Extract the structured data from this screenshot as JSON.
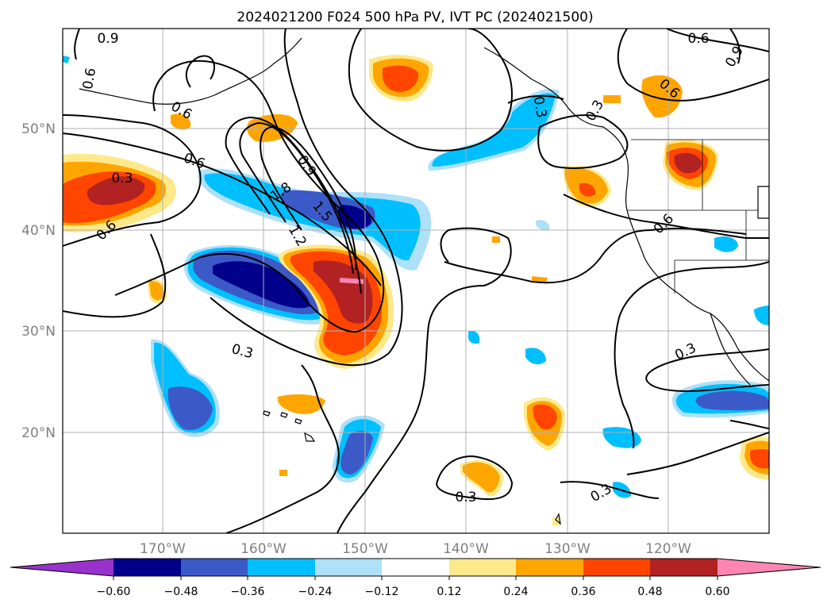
{
  "title": "2024021200 F024 500 hPa PV, IVT PC (2024021500)",
  "lat_labels": [
    "50°N",
    "40°N",
    "30°N",
    "20°N"
  ],
  "lon_labels": [
    "170°W",
    "160°W",
    "150°W",
    "140°W",
    "130°W",
    "120°W"
  ],
  "contour_labels": [
    "0.9",
    "0.6",
    "0.6",
    "0.6",
    "0.3",
    "0.6",
    "0.9",
    "1.8",
    "1.5",
    "1.2",
    "0.3",
    "0.6",
    "0.3",
    "0.3",
    "0.9",
    "0.6",
    "0.6",
    "0.3",
    "0.3",
    "0.3",
    "0.3"
  ],
  "colorbar": {
    "ticks": [
      "−0.60",
      "−0.48",
      "−0.36",
      "−0.24",
      "−0.12",
      "0.12",
      "0.24",
      "0.36",
      "0.48",
      "0.60"
    ],
    "colors": {
      "under": "#9932cc",
      "n048": "#00008b",
      "n036": "#3c59c8",
      "n024": "#00bfff",
      "n012": "#aee0f8",
      "zero": "#ffffff",
      "p012": "#fde98a",
      "p024": "#ffa500",
      "p036": "#ff4500",
      "p048": "#b22222",
      "over": "#ff85b3"
    }
  }
}
